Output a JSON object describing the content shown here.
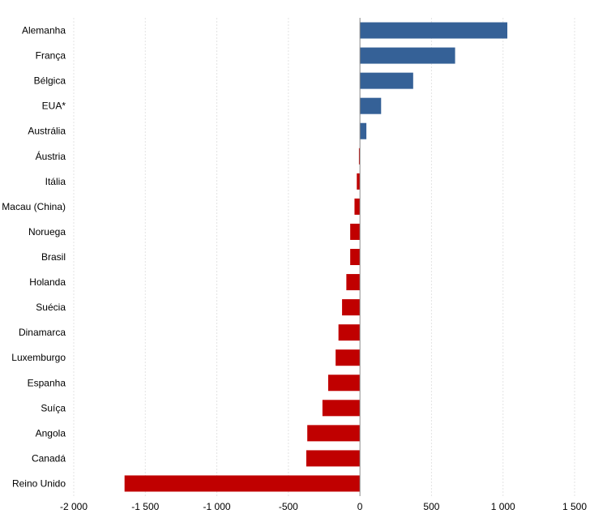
{
  "chart_data": {
    "type": "bar",
    "orientation": "horizontal",
    "title": "",
    "xlabel": "",
    "ylabel": "",
    "categories": [
      "Alemanha",
      "França",
      "Bélgica",
      "EUA*",
      "Austrália",
      "Áustria",
      "Itália",
      "Macau (China)",
      "Noruega",
      "Brasil",
      "Holanda",
      "Suécia",
      "Dinamarca",
      "Luxemburgo",
      "Espanha",
      "Suíça",
      "Angola",
      "Canadá",
      "Reino Unido"
    ],
    "values": [
      1030,
      665,
      372,
      148,
      45,
      -7,
      -22,
      -38,
      -68,
      -68,
      -95,
      -125,
      -150,
      -170,
      -222,
      -262,
      -368,
      -375,
      -1645
    ],
    "xlim": [
      -2000,
      1500
    ],
    "xticks": [
      -2000,
      -1500,
      -1000,
      -500,
      0,
      500,
      1000,
      1500
    ],
    "xtick_labels": [
      "-2 000",
      "-1 500",
      "-1 000",
      "-500",
      "0",
      "500",
      "1 000",
      "1 500"
    ],
    "grid": true,
    "colors": {
      "positive": "#356197",
      "negative": "#c00000",
      "grid": "#e3e3e3",
      "axis": "#888888"
    }
  }
}
